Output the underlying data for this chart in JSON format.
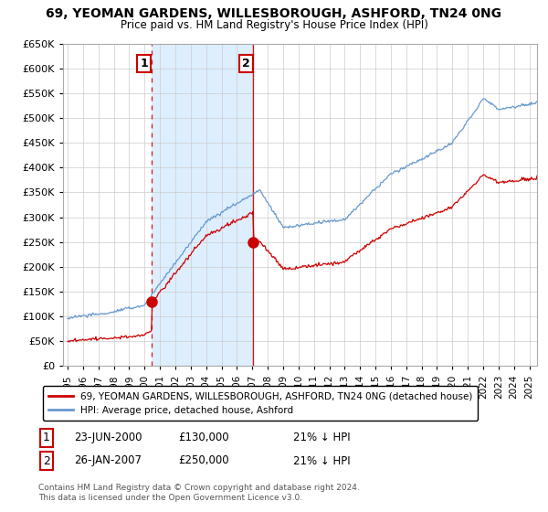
{
  "title": "69, YEOMAN GARDENS, WILLESBOROUGH, ASHFORD, TN24 0NG",
  "subtitle": "Price paid vs. HM Land Registry's House Price Index (HPI)",
  "sale1_date": 2000.47,
  "sale1_price": 130000,
  "sale1_label": "1",
  "sale1_text": "23-JUN-2000",
  "sale1_pct": "21% ↓ HPI",
  "sale2_date": 2007.07,
  "sale2_price": 250000,
  "sale2_label": "2",
  "sale2_text": "26-JAN-2007",
  "sale2_pct": "21% ↓ HPI",
  "legend_line1": "69, YEOMAN GARDENS, WILLESBOROUGH, ASHFORD, TN24 0NG (detached house)",
  "legend_line2": "HPI: Average price, detached house, Ashford",
  "footer": "Contains HM Land Registry data © Crown copyright and database right 2024.\nThis data is licensed under the Open Government Licence v3.0.",
  "red_color": "#cc0000",
  "blue_color": "#6699cc",
  "shade_color": "#ddeeff",
  "dashed_color": "#cc0000",
  "ylim": [
    0,
    650000
  ],
  "xlim_start": 1994.7,
  "xlim_end": 2025.5,
  "yticks": [
    0,
    50000,
    100000,
    150000,
    200000,
    250000,
    300000,
    350000,
    400000,
    450000,
    500000,
    550000,
    600000,
    650000
  ],
  "xticks": [
    1995,
    1996,
    1997,
    1998,
    1999,
    2000,
    2001,
    2002,
    2003,
    2004,
    2005,
    2006,
    2007,
    2008,
    2009,
    2010,
    2011,
    2012,
    2013,
    2014,
    2015,
    2016,
    2017,
    2018,
    2019,
    2020,
    2021,
    2022,
    2023,
    2024,
    2025
  ]
}
